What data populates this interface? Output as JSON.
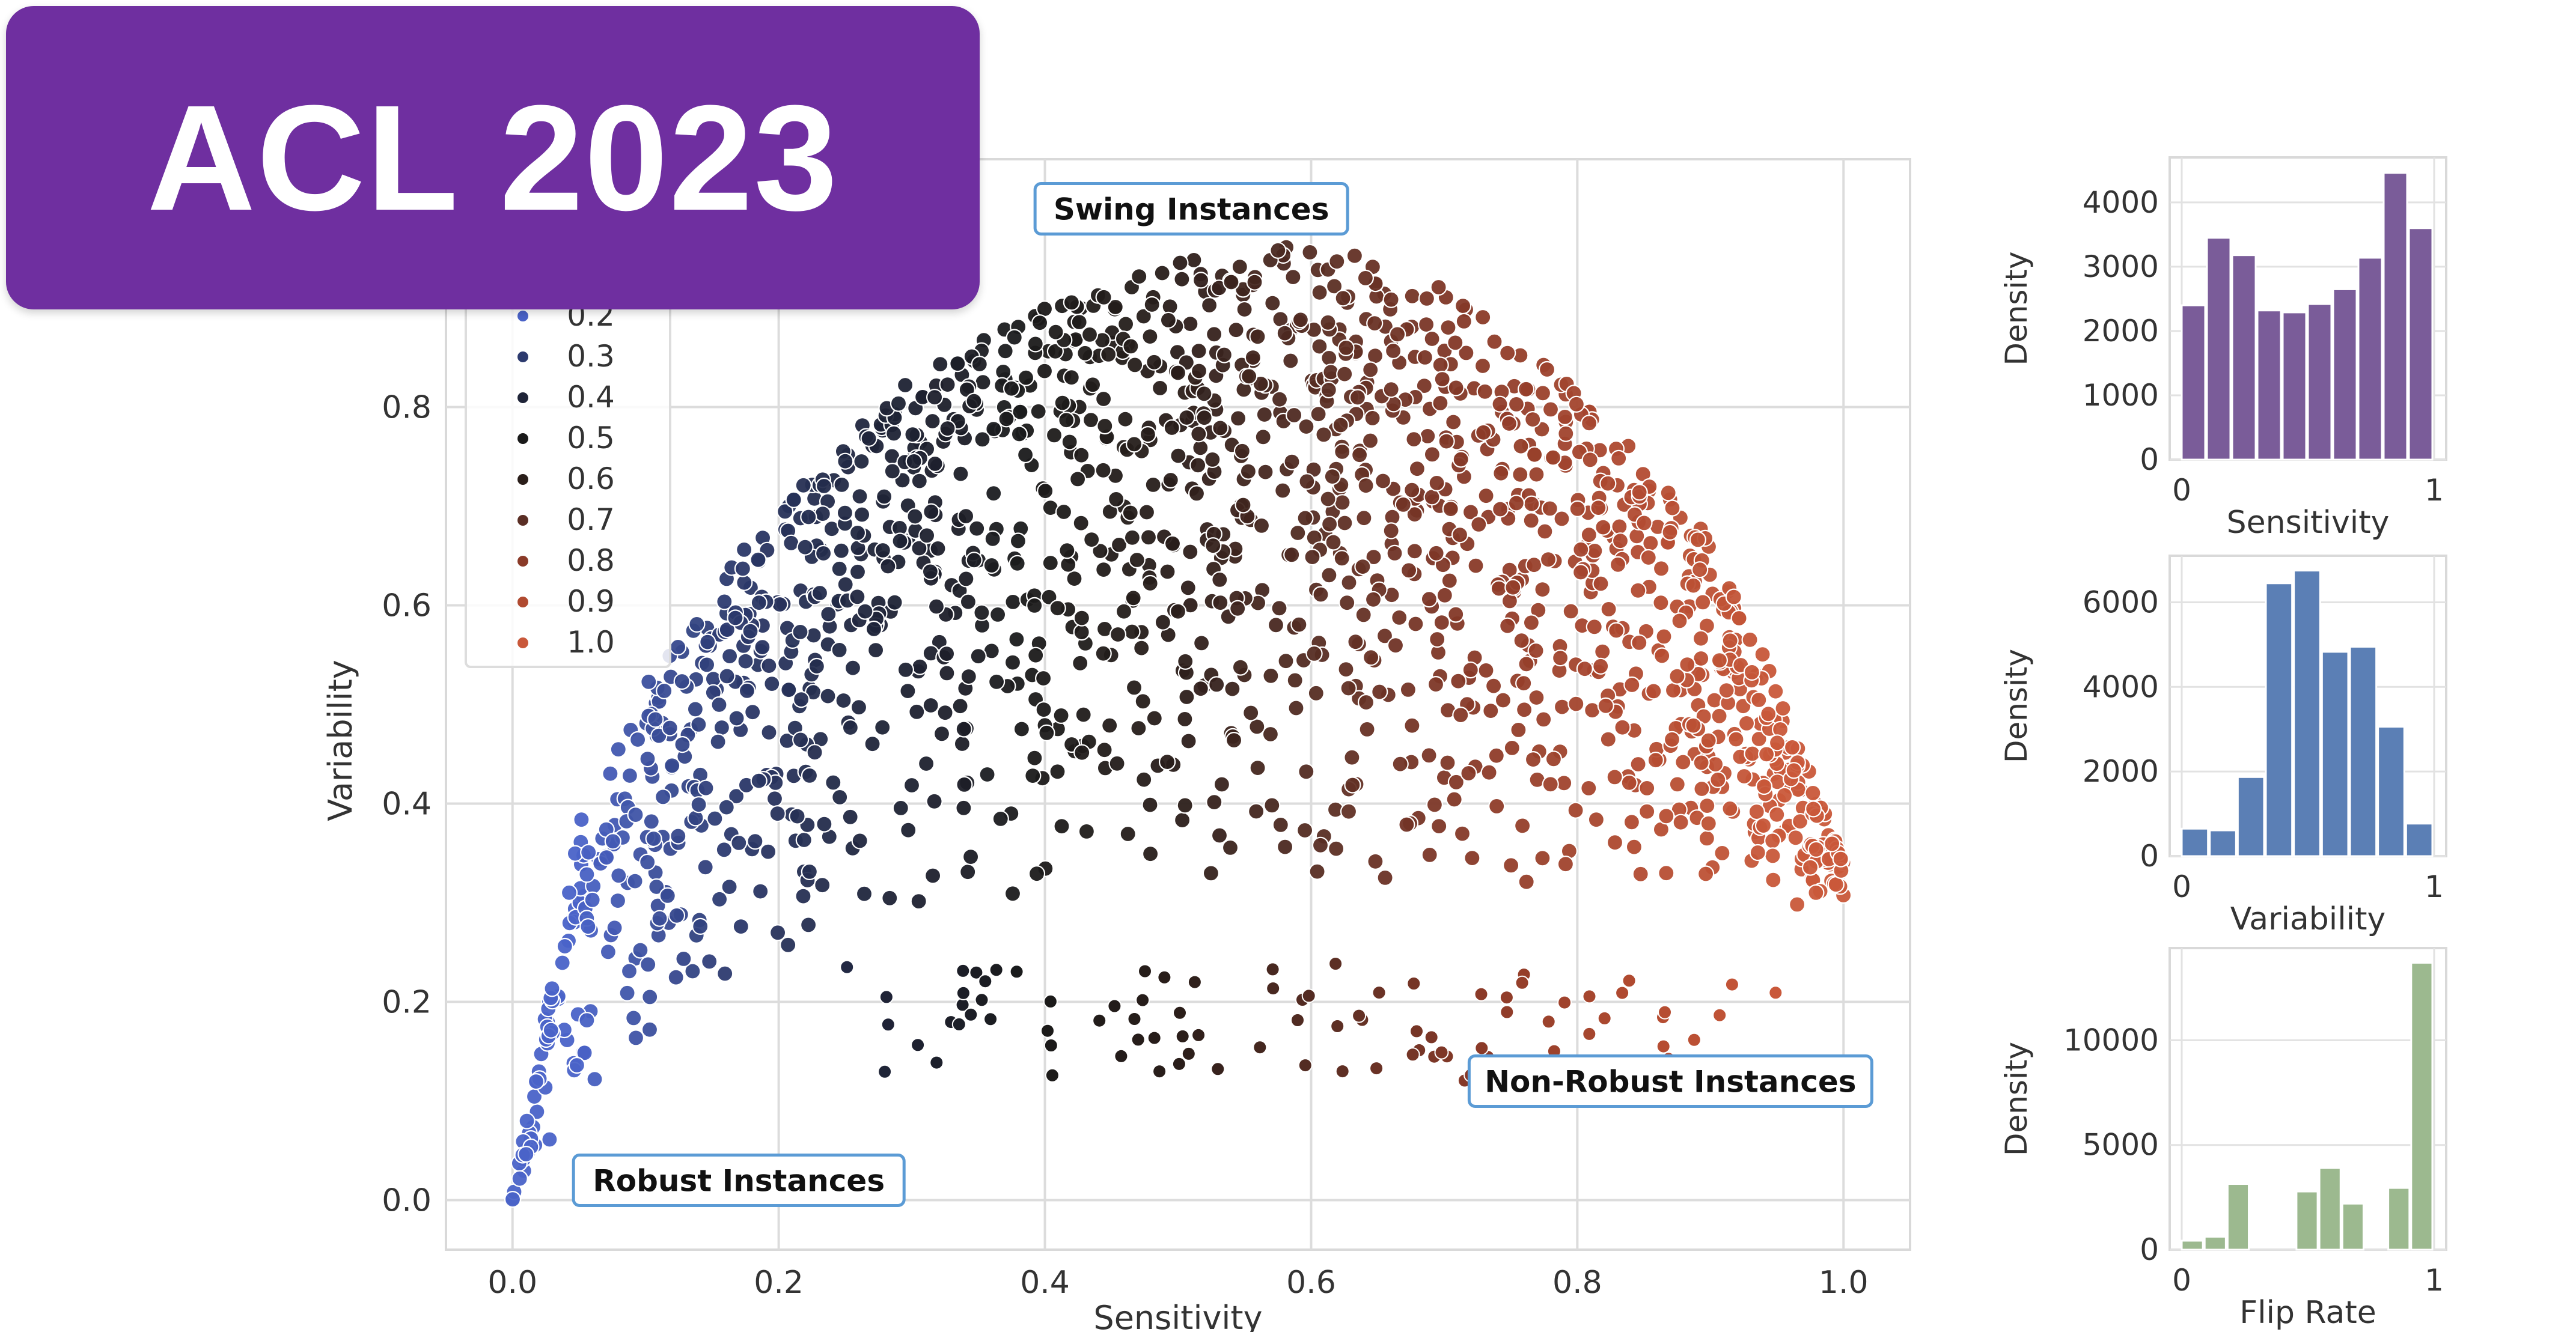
{
  "banner": {
    "text": "ACL 2023",
    "color": "#6f2fa0"
  },
  "chart_data": [
    {
      "type": "scatter",
      "xlabel": "Sensitivity",
      "ylabel": "Variability",
      "xlim": [
        -0.05,
        1.05
      ],
      "ylim": [
        -0.05,
        1.05
      ],
      "xticks": [
        0.0,
        0.2,
        0.4,
        0.6,
        0.8,
        1.0
      ],
      "xtick_labels": [
        "0.0",
        "0.2",
        "0.4",
        "0.6",
        "0.8",
        "1.0"
      ],
      "yticks": [
        0.0,
        0.2,
        0.4,
        0.6,
        0.8
      ],
      "ytick_labels": [
        "0.0",
        "0.2",
        "0.4",
        "0.6",
        "0.8"
      ],
      "grid": true,
      "legend_position": "upper-left",
      "legend": [
        {
          "label": "0.2",
          "color": "#4a63c8",
          "marker": "square"
        },
        {
          "label": "0.3",
          "color": "#2c3a6e",
          "marker": "diamond"
        },
        {
          "label": "0.4",
          "color": "#1f2438",
          "marker": "pentagon"
        },
        {
          "label": "0.5",
          "color": "#1a1a1a",
          "marker": "plus"
        },
        {
          "label": "0.6",
          "color": "#2a1e1a",
          "marker": "triangle"
        },
        {
          "label": "0.7",
          "color": "#5a2e24",
          "marker": "x"
        },
        {
          "label": "0.8",
          "color": "#8a3a28",
          "marker": "triangle-down"
        },
        {
          "label": "0.9",
          "color": "#b04a30",
          "marker": "circle-small"
        },
        {
          "label": "1.0",
          "color": "#c9583a",
          "marker": "circle"
        }
      ],
      "annotations": [
        {
          "text": "Swing Instances",
          "x": 0.51,
          "y": 1.0
        },
        {
          "text": "Non-Robust Instances",
          "x": 0.87,
          "y": 0.12
        },
        {
          "text": "Robust Instances",
          "x": 0.17,
          "y": 0.02
        }
      ],
      "distribution": {
        "description_free_params": true,
        "upper_envelope": [
          [
            0.0,
            0.0
          ],
          [
            0.05,
            0.38
          ],
          [
            0.1,
            0.52
          ],
          [
            0.15,
            0.62
          ],
          [
            0.2,
            0.7
          ],
          [
            0.3,
            0.83
          ],
          [
            0.4,
            0.9
          ],
          [
            0.5,
            0.95
          ],
          [
            0.6,
            0.97
          ],
          [
            0.7,
            0.92
          ],
          [
            0.8,
            0.82
          ],
          [
            0.9,
            0.67
          ],
          [
            0.95,
            0.52
          ],
          [
            1.0,
            0.34
          ]
        ],
        "lower_envelope": [
          [
            0.0,
            0.0
          ],
          [
            0.1,
            0.05
          ],
          [
            0.2,
            0.13
          ],
          [
            0.3,
            0.19
          ],
          [
            0.4,
            0.2
          ],
          [
            0.5,
            0.2
          ],
          [
            0.6,
            0.2
          ],
          [
            0.7,
            0.2
          ],
          [
            0.8,
            0.21
          ],
          [
            0.9,
            0.23
          ],
          [
            0.95,
            0.25
          ],
          [
            1.0,
            0.3
          ]
        ]
      }
    },
    {
      "type": "bar",
      "xlabel": "Sensitivity",
      "ylabel": "Density",
      "bin_range": [
        0,
        1
      ],
      "values": [
        2400,
        3450,
        3180,
        2320,
        2290,
        2420,
        2650,
        3140,
        4460,
        3600
      ],
      "ylim": [
        0,
        4700
      ],
      "yticks": [
        0,
        1000,
        2000,
        3000,
        4000
      ],
      "ytick_labels": [
        "0",
        "1000",
        "2000",
        "3000",
        "4000"
      ],
      "xticks": [
        0,
        1
      ],
      "xtick_labels": [
        "0",
        "1"
      ],
      "color": "#7a5c99"
    },
    {
      "type": "bar",
      "xlabel": "Variability",
      "ylabel": "Density",
      "bin_range": [
        0,
        1
      ],
      "values": [
        650,
        610,
        1870,
        6450,
        6750,
        4830,
        4950,
        3060,
        770
      ],
      "ylim": [
        0,
        7100
      ],
      "yticks": [
        0,
        2000,
        4000,
        6000
      ],
      "ytick_labels": [
        "0",
        "2000",
        "4000",
        "6000"
      ],
      "xticks": [
        0,
        1
      ],
      "xtick_labels": [
        "0",
        "1"
      ],
      "color": "#5b7fb5"
    },
    {
      "type": "bar",
      "xlabel": "Flip Rate",
      "ylabel": "Density",
      "bin_range": [
        0,
        1
      ],
      "values": [
        430,
        620,
        3140,
        0,
        0,
        2780,
        3900,
        2200,
        0,
        2950,
        13700
      ],
      "ylim": [
        0,
        14400
      ],
      "yticks": [
        0,
        5000,
        10000
      ],
      "ytick_labels": [
        "0",
        "5000",
        "10000"
      ],
      "xticks": [
        0,
        1
      ],
      "xtick_labels": [
        "0",
        "1"
      ],
      "color": "#9cb98f"
    }
  ]
}
